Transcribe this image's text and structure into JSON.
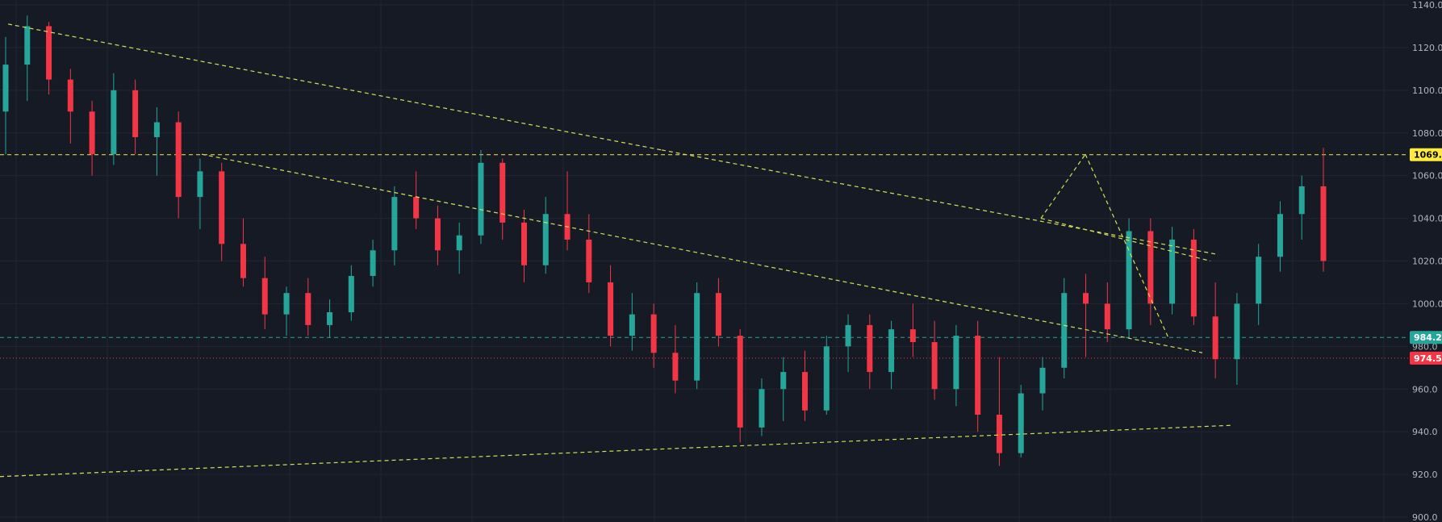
{
  "chart_data": {
    "type": "candlestick",
    "y_axis": {
      "ticks": [
        "1140.0",
        "1120.0",
        "1100.0",
        "1080.0",
        "1060.0",
        "1040.0",
        "1020.0",
        "1000.0",
        "980.0",
        "960.0",
        "940.0",
        "920.0",
        "900.0"
      ],
      "ylim": [
        900,
        1140
      ],
      "position": "right"
    },
    "price_badges": [
      {
        "label": "1069.8",
        "value": 1069.8,
        "color": "#ffeb3b",
        "text_color": "#000000"
      },
      {
        "label": "984.2",
        "value": 984.2,
        "color": "#26a69a",
        "text_color": "#ffffff"
      },
      {
        "label": "974.5",
        "value": 974.5,
        "color": "#f23645",
        "text_color": "#ffffff"
      }
    ],
    "horizontal_lines": [
      {
        "value": 1069.8,
        "color": "#ffeb3b",
        "style": "dashed"
      },
      {
        "value": 984.2,
        "color": "#26a69a",
        "style": "dashed"
      },
      {
        "value": 974.5,
        "color": "#f23645",
        "style": "dotted"
      }
    ],
    "trendlines": [
      {
        "from": [
          10,
          1131
        ],
        "to": [
          820,
          1072
        ],
        "color": "#d4e157"
      },
      {
        "from": [
          820,
          1072
        ],
        "to": [
          1510,
          1023
        ],
        "color": "#d4e157"
      },
      {
        "from": [
          250,
          1070
        ],
        "to": [
          1490,
          977
        ],
        "color": "#d4e157"
      },
      {
        "from": [
          0,
          919
        ],
        "to": [
          1525,
          943
        ],
        "color": "#d4e157"
      },
      {
        "from": [
          1290,
          1040
        ],
        "to": [
          1345,
          1070
        ],
        "color": "#d4e157"
      },
      {
        "from": [
          1345,
          1070
        ],
        "to": [
          1448,
          984
        ],
        "color": "#d4e157"
      },
      {
        "from": [
          1290,
          1040
        ],
        "to": [
          1500,
          1020
        ],
        "color": "#d4e157"
      }
    ],
    "colors": {
      "up": "#26a69a",
      "down": "#f23645",
      "background": "#161a25",
      "grid": "#232632"
    },
    "series": [
      {
        "name": "",
        "ohlc": [
          [
            1090,
            1125,
            1070,
            1112
          ],
          [
            1112,
            1135,
            1095,
            1130
          ],
          [
            1130,
            1132,
            1098,
            1105
          ],
          [
            1105,
            1110,
            1075,
            1090
          ],
          [
            1090,
            1095,
            1060,
            1070
          ],
          [
            1070,
            1108,
            1065,
            1100
          ],
          [
            1100,
            1105,
            1070,
            1078
          ],
          [
            1078,
            1092,
            1060,
            1085
          ],
          [
            1085,
            1090,
            1040,
            1050
          ],
          [
            1050,
            1068,
            1035,
            1062
          ],
          [
            1062,
            1066,
            1020,
            1028
          ],
          [
            1028,
            1040,
            1008,
            1012
          ],
          [
            1012,
            1022,
            988,
            995
          ],
          [
            995,
            1008,
            985,
            1005
          ],
          [
            1005,
            1012,
            985,
            990
          ],
          [
            990,
            1002,
            984,
            996
          ],
          [
            996,
            1018,
            992,
            1013
          ],
          [
            1013,
            1030,
            1008,
            1025
          ],
          [
            1025,
            1055,
            1018,
            1050
          ],
          [
            1050,
            1062,
            1035,
            1040
          ],
          [
            1040,
            1046,
            1018,
            1025
          ],
          [
            1025,
            1038,
            1014,
            1032
          ],
          [
            1032,
            1072,
            1028,
            1066
          ],
          [
            1066,
            1068,
            1030,
            1038
          ],
          [
            1038,
            1044,
            1010,
            1018
          ],
          [
            1018,
            1050,
            1014,
            1042
          ],
          [
            1042,
            1062,
            1025,
            1030
          ],
          [
            1030,
            1042,
            1005,
            1010
          ],
          [
            1010,
            1018,
            980,
            985
          ],
          [
            985,
            1005,
            978,
            995
          ],
          [
            995,
            1000,
            970,
            977
          ],
          [
            977,
            990,
            958,
            964
          ],
          [
            964,
            1010,
            960,
            1005
          ],
          [
            1005,
            1012,
            980,
            985
          ],
          [
            985,
            988,
            935,
            942
          ],
          [
            942,
            965,
            938,
            960
          ],
          [
            960,
            975,
            945,
            968
          ],
          [
            968,
            978,
            945,
            950
          ],
          [
            950,
            985,
            948,
            980
          ],
          [
            980,
            995,
            968,
            990
          ],
          [
            990,
            995,
            960,
            968
          ],
          [
            968,
            992,
            960,
            988
          ],
          [
            988,
            1000,
            975,
            982
          ],
          [
            982,
            992,
            955,
            960
          ],
          [
            960,
            990,
            952,
            985
          ],
          [
            985,
            992,
            940,
            948
          ],
          [
            948,
            975,
            924,
            930
          ],
          [
            930,
            962,
            928,
            958
          ],
          [
            958,
            975,
            950,
            970
          ],
          [
            970,
            1012,
            965,
            1005
          ],
          [
            1005,
            1014,
            975,
            1000
          ],
          [
            1000,
            1010,
            982,
            988
          ],
          [
            988,
            1040,
            984,
            1034
          ],
          [
            1034,
            1040,
            990,
            1000
          ],
          [
            1000,
            1036,
            995,
            1030
          ],
          [
            1030,
            1035,
            990,
            994
          ],
          [
            994,
            1010,
            965,
            974
          ],
          [
            974,
            1005,
            962,
            1000
          ],
          [
            1000,
            1028,
            990,
            1022
          ],
          [
            1022,
            1048,
            1015,
            1042
          ],
          [
            1042,
            1060,
            1030,
            1055
          ],
          [
            1055,
            1073,
            1015,
            1020
          ]
        ]
      }
    ]
  }
}
